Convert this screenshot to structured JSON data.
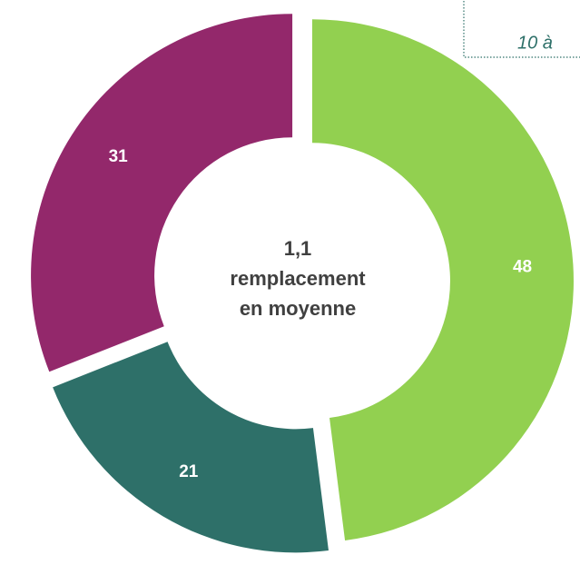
{
  "chart_data": {
    "type": "donut",
    "categories": [
      null,
      null,
      null
    ],
    "series": [
      {
        "name": null,
        "values": [
          48,
          21,
          31
        ],
        "colors": [
          "#92d050",
          "#2e7069",
          "#93286b"
        ]
      }
    ],
    "center_label": [
      "1,1",
      "remplacement",
      "en moyenne"
    ],
    "annotation": "10 à"
  }
}
